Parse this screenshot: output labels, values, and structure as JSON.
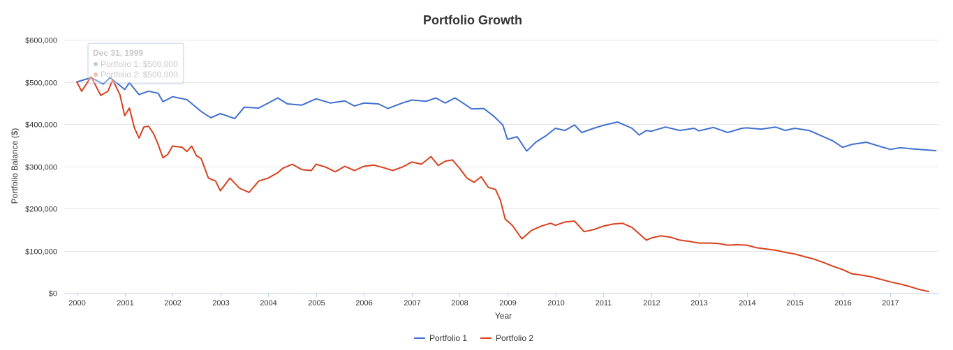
{
  "chart_data": {
    "type": "line",
    "title": "Portfolio Growth",
    "xlabel": "Year",
    "ylabel": "Portfolio Balance ($)",
    "ylim": [
      0,
      600000
    ],
    "yticks": [
      0,
      100000,
      200000,
      300000,
      400000,
      500000,
      600000
    ],
    "ytick_labels": [
      "$0",
      "$100,000",
      "$200,000",
      "$300,000",
      "$400,000",
      "$500,000",
      "$600,000"
    ],
    "xlim": [
      2000,
      2017.95
    ],
    "xticks": [
      2000,
      2001,
      2002,
      2003,
      2004,
      2005,
      2006,
      2007,
      2008,
      2009,
      2010,
      2011,
      2012,
      2013,
      2014,
      2015,
      2016,
      2017
    ],
    "xtick_labels": [
      "2000",
      "2001",
      "2002",
      "2003",
      "2004",
      "2005",
      "2006",
      "2007",
      "2008",
      "2009",
      "2010",
      "2011",
      "2012",
      "2013",
      "2014",
      "2015",
      "2016",
      "2017"
    ],
    "grid": true,
    "legend_position": "bottom-center",
    "series": [
      {
        "name": "Portfolio 1",
        "color": "#3f6fcf",
        "points": [
          [
            2000.0,
            500000
          ],
          [
            2000.3,
            510000
          ],
          [
            2000.55,
            495000
          ],
          [
            2000.7,
            510000
          ],
          [
            2001.0,
            482000
          ],
          [
            2001.1,
            498000
          ],
          [
            2001.3,
            470000
          ],
          [
            2001.5,
            478000
          ],
          [
            2001.7,
            473000
          ],
          [
            2001.8,
            453000
          ],
          [
            2002.0,
            465000
          ],
          [
            2002.3,
            458000
          ],
          [
            2002.6,
            430000
          ],
          [
            2002.8,
            415000
          ],
          [
            2003.0,
            425000
          ],
          [
            2003.3,
            413000
          ],
          [
            2003.5,
            440000
          ],
          [
            2003.8,
            438000
          ],
          [
            2004.0,
            450000
          ],
          [
            2004.2,
            462000
          ],
          [
            2004.4,
            448000
          ],
          [
            2004.7,
            445000
          ],
          [
            2005.0,
            460000
          ],
          [
            2005.3,
            450000
          ],
          [
            2005.6,
            455000
          ],
          [
            2005.8,
            443000
          ],
          [
            2006.0,
            450000
          ],
          [
            2006.3,
            448000
          ],
          [
            2006.5,
            437000
          ],
          [
            2006.8,
            450000
          ],
          [
            2007.0,
            457000
          ],
          [
            2007.3,
            454000
          ],
          [
            2007.5,
            462000
          ],
          [
            2007.7,
            450000
          ],
          [
            2007.9,
            462000
          ],
          [
            2008.0,
            455000
          ],
          [
            2008.25,
            436000
          ],
          [
            2008.5,
            437000
          ],
          [
            2008.7,
            420000
          ],
          [
            2008.9,
            398000
          ],
          [
            2009.0,
            364000
          ],
          [
            2009.2,
            370000
          ],
          [
            2009.4,
            336000
          ],
          [
            2009.6,
            358000
          ],
          [
            2009.8,
            372000
          ],
          [
            2010.0,
            390000
          ],
          [
            2010.2,
            385000
          ],
          [
            2010.4,
            398000
          ],
          [
            2010.55,
            380000
          ],
          [
            2010.8,
            390000
          ],
          [
            2011.0,
            397000
          ],
          [
            2011.3,
            405000
          ],
          [
            2011.6,
            390000
          ],
          [
            2011.75,
            374000
          ],
          [
            2011.9,
            385000
          ],
          [
            2012.0,
            383000
          ],
          [
            2012.3,
            393000
          ],
          [
            2012.6,
            385000
          ],
          [
            2012.9,
            390000
          ],
          [
            2013.0,
            384000
          ],
          [
            2013.3,
            392000
          ],
          [
            2013.6,
            380000
          ],
          [
            2013.9,
            390000
          ],
          [
            2014.0,
            391000
          ],
          [
            2014.3,
            388000
          ],
          [
            2014.6,
            393000
          ],
          [
            2014.8,
            385000
          ],
          [
            2015.0,
            390000
          ],
          [
            2015.3,
            385000
          ],
          [
            2015.6,
            370000
          ],
          [
            2015.8,
            360000
          ],
          [
            2016.0,
            345000
          ],
          [
            2016.2,
            352000
          ],
          [
            2016.5,
            357000
          ],
          [
            2016.7,
            350000
          ],
          [
            2017.0,
            340000
          ],
          [
            2017.2,
            344000
          ],
          [
            2017.5,
            341000
          ],
          [
            2017.6,
            340000
          ],
          [
            2017.95,
            337000
          ]
        ]
      },
      {
        "name": "Portfolio 2",
        "color": "#d9401e",
        "points": [
          [
            2000.0,
            500000
          ],
          [
            2000.1,
            478000
          ],
          [
            2000.3,
            512000
          ],
          [
            2000.5,
            468000
          ],
          [
            2000.65,
            478000
          ],
          [
            2000.75,
            505000
          ],
          [
            2000.9,
            470000
          ],
          [
            2001.0,
            420000
          ],
          [
            2001.1,
            438000
          ],
          [
            2001.2,
            392000
          ],
          [
            2001.3,
            367000
          ],
          [
            2001.4,
            393000
          ],
          [
            2001.5,
            395000
          ],
          [
            2001.6,
            378000
          ],
          [
            2001.7,
            352000
          ],
          [
            2001.8,
            320000
          ],
          [
            2001.9,
            328000
          ],
          [
            2002.0,
            348000
          ],
          [
            2002.2,
            345000
          ],
          [
            2002.3,
            335000
          ],
          [
            2002.4,
            348000
          ],
          [
            2002.5,
            325000
          ],
          [
            2002.6,
            318000
          ],
          [
            2002.75,
            272000
          ],
          [
            2002.9,
            265000
          ],
          [
            2003.0,
            242000
          ],
          [
            2003.2,
            272000
          ],
          [
            2003.4,
            248000
          ],
          [
            2003.6,
            238000
          ],
          [
            2003.8,
            265000
          ],
          [
            2004.0,
            272000
          ],
          [
            2004.2,
            285000
          ],
          [
            2004.3,
            295000
          ],
          [
            2004.5,
            305000
          ],
          [
            2004.7,
            292000
          ],
          [
            2004.9,
            290000
          ],
          [
            2005.0,
            305000
          ],
          [
            2005.2,
            298000
          ],
          [
            2005.4,
            287000
          ],
          [
            2005.6,
            300000
          ],
          [
            2005.8,
            290000
          ],
          [
            2006.0,
            300000
          ],
          [
            2006.2,
            303000
          ],
          [
            2006.4,
            297000
          ],
          [
            2006.6,
            290000
          ],
          [
            2006.8,
            298000
          ],
          [
            2007.0,
            310000
          ],
          [
            2007.2,
            305000
          ],
          [
            2007.4,
            323000
          ],
          [
            2007.55,
            302000
          ],
          [
            2007.7,
            312000
          ],
          [
            2007.85,
            315000
          ],
          [
            2008.0,
            295000
          ],
          [
            2008.15,
            272000
          ],
          [
            2008.3,
            262000
          ],
          [
            2008.45,
            275000
          ],
          [
            2008.6,
            250000
          ],
          [
            2008.75,
            245000
          ],
          [
            2008.85,
            220000
          ],
          [
            2008.95,
            175000
          ],
          [
            2009.1,
            160000
          ],
          [
            2009.3,
            128000
          ],
          [
            2009.5,
            148000
          ],
          [
            2009.7,
            158000
          ],
          [
            2009.9,
            165000
          ],
          [
            2010.0,
            160000
          ],
          [
            2010.2,
            168000
          ],
          [
            2010.4,
            170000
          ],
          [
            2010.6,
            145000
          ],
          [
            2010.8,
            150000
          ],
          [
            2011.0,
            158000
          ],
          [
            2011.2,
            163000
          ],
          [
            2011.4,
            165000
          ],
          [
            2011.6,
            155000
          ],
          [
            2011.75,
            140000
          ],
          [
            2011.9,
            125000
          ],
          [
            2012.0,
            130000
          ],
          [
            2012.2,
            135000
          ],
          [
            2012.4,
            132000
          ],
          [
            2012.6,
            125000
          ],
          [
            2012.8,
            122000
          ],
          [
            2013.0,
            118000
          ],
          [
            2013.2,
            118000
          ],
          [
            2013.4,
            117000
          ],
          [
            2013.6,
            113000
          ],
          [
            2013.8,
            114000
          ],
          [
            2014.0,
            113000
          ],
          [
            2014.2,
            107000
          ],
          [
            2014.4,
            104000
          ],
          [
            2014.6,
            101000
          ],
          [
            2014.8,
            96000
          ],
          [
            2015.0,
            92000
          ],
          [
            2015.2,
            86000
          ],
          [
            2015.4,
            80000
          ],
          [
            2015.6,
            72000
          ],
          [
            2015.8,
            63000
          ],
          [
            2016.0,
            55000
          ],
          [
            2016.2,
            45000
          ],
          [
            2016.4,
            42000
          ],
          [
            2016.6,
            38000
          ],
          [
            2016.8,
            32000
          ],
          [
            2017.0,
            26000
          ],
          [
            2017.2,
            21000
          ],
          [
            2017.4,
            15000
          ],
          [
            2017.6,
            8000
          ],
          [
            2017.8,
            3000
          ]
        ]
      }
    ],
    "tooltip": {
      "date": "Dec 31, 1999",
      "lines": [
        "Portfolio 1: $500,000",
        "Portfolio 2: $500,000"
      ]
    }
  }
}
